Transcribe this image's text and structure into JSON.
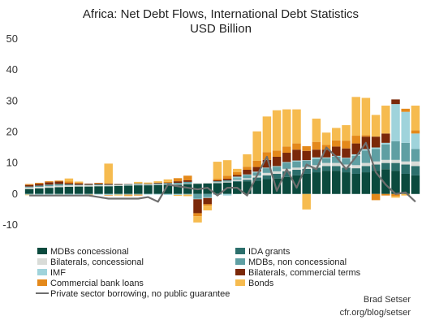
{
  "chart_data": {
    "type": "bar",
    "stacked": true,
    "title": "Africa: Net Debt Flows, International Debt Statistics",
    "subtitle": "USD Billion",
    "xlabel": "",
    "ylabel": "",
    "ylim": [
      -15,
      50
    ],
    "yticks": [
      -10,
      0,
      10,
      20,
      30,
      40,
      50
    ],
    "grid": false,
    "legend_position": "bottom",
    "series": [
      {
        "name": "MDBs concessional",
        "color": "#0b4a3e",
        "values": [
          1.6,
          1.8,
          2.0,
          2.2,
          2.3,
          2.4,
          2.4,
          2.5,
          2.5,
          2.6,
          2.7,
          2.8,
          2.8,
          2.9,
          3.0,
          3.0,
          3.2,
          3.3,
          3.4,
          3.5,
          3.7,
          3.9,
          4.1,
          4.3,
          4.8,
          5.0,
          5.5,
          6.0,
          6.5,
          7.0,
          7.5,
          7.5,
          7.0,
          6.5,
          7.0,
          7.5,
          8.0,
          7.5,
          6.5,
          6.0
        ]
      },
      {
        "name": "IDA grants",
        "color": "#2c6f6c",
        "values": [
          0,
          0,
          0,
          0,
          0,
          0,
          0,
          0,
          0,
          0,
          0,
          0,
          0,
          0,
          0,
          0,
          0,
          0,
          0,
          0,
          0,
          0.3,
          0.5,
          1.0,
          1.2,
          1.5,
          1.8,
          1.8,
          1.6,
          1.5,
          1.5,
          1.5,
          1.5,
          1.8,
          2.0,
          2.0,
          2.0,
          2.5,
          3.0,
          3.0
        ]
      },
      {
        "name": "Bilaterals, concessional",
        "color": "#d9dcd8",
        "values": [
          0.5,
          0.5,
          0.5,
          0.5,
          0.5,
          0.4,
          0.4,
          0.3,
          0.3,
          0.2,
          0.2,
          0.2,
          0.2,
          0.2,
          0.2,
          0.2,
          0.2,
          0.2,
          0.2,
          0.3,
          0.3,
          0.4,
          0.5,
          0.6,
          0.8,
          0.8,
          0.8,
          0.7,
          0.6,
          0.8,
          1.0,
          1.0,
          1.0,
          1.0,
          1.0,
          1.0,
          1.0,
          1.0,
          1.0,
          1.5
        ]
      },
      {
        "name": "MDBs, non concessional",
        "color": "#5f9fa3",
        "values": [
          0.3,
          0.4,
          0.5,
          0.5,
          0.3,
          0.2,
          0.2,
          0.3,
          0.2,
          0.2,
          0.2,
          0.3,
          0.2,
          0.3,
          0.3,
          0.4,
          0.5,
          -1.5,
          -1.0,
          0.3,
          0.4,
          0.5,
          1.0,
          1.0,
          1.5,
          1.5,
          2.0,
          2.0,
          2.0,
          2.0,
          1.5,
          2.0,
          2.0,
          3.0,
          4.0,
          4.0,
          5.0,
          6.0,
          6.0,
          4.0
        ]
      },
      {
        "name": "IMF",
        "color": "#9fd3db",
        "values": [
          -0.2,
          -0.3,
          -0.3,
          -0.2,
          -0.3,
          -0.2,
          -0.2,
          -0.2,
          -0.3,
          -0.2,
          -0.2,
          -0.2,
          -0.2,
          -0.2,
          -0.3,
          -0.3,
          -0.2,
          -0.2,
          -0.3,
          -0.3,
          -0.5,
          0.5,
          0.2,
          0.3,
          0.2,
          0.2,
          0.2,
          0.3,
          0.2,
          0.5,
          0.3,
          0.3,
          0.2,
          0.5,
          0.5,
          0.5,
          0.5,
          12.0,
          10.0,
          5.0
        ]
      },
      {
        "name": "Bilaterals, commercial terms",
        "color": "#7b2809",
        "values": [
          0.5,
          0.6,
          0.8,
          0.8,
          0.4,
          0.4,
          0.3,
          0.3,
          0.3,
          0.2,
          0.1,
          0.1,
          0.1,
          0.2,
          0.1,
          0.5,
          0.5,
          -4.5,
          -2.0,
          0.3,
          0.5,
          0.5,
          1.5,
          1.5,
          2.5,
          3.0,
          3.0,
          3.5,
          3.0,
          2.5,
          2.5,
          3.0,
          3.0,
          3.5,
          4.0,
          3.5,
          3.0,
          1.5,
          0,
          0
        ]
      },
      {
        "name": "Commercial bank loans",
        "color": "#e4891b",
        "values": [
          0.3,
          0.3,
          0.3,
          0.3,
          0.5,
          0.3,
          -0.2,
          0.2,
          -0.2,
          0,
          -0.3,
          -0.3,
          0.1,
          0,
          0.3,
          1.0,
          1.5,
          -1.0,
          -0.5,
          0.5,
          1.0,
          1.0,
          1.0,
          2.0,
          2.5,
          2.0,
          2.0,
          2.0,
          1.5,
          2.5,
          1.5,
          2.0,
          2.5,
          2.5,
          0.5,
          -2.0,
          -0.5,
          -0.7,
          1.0,
          1.0
        ]
      },
      {
        "name": "Bonds",
        "color": "#f6bb4f",
        "values": [
          -0.2,
          -0.3,
          -0.3,
          -0.3,
          1.0,
          0.3,
          -0.3,
          0,
          6.5,
          -0.3,
          -0.2,
          0.5,
          0.3,
          0.5,
          0.8,
          -0.3,
          -0.5,
          -2.0,
          -1.5,
          5.5,
          5.0,
          1.0,
          4.0,
          9.5,
          11.5,
          13.0,
          12.0,
          11.0,
          -5.0,
          7.5,
          4.0,
          4.0,
          5.0,
          12.5,
          12.0,
          7.0,
          9.0,
          -0.5,
          -0.5,
          8.0
        ]
      }
    ],
    "line": {
      "name": "Private sector borrowing, no public guarantee",
      "color": "#6e6e6e",
      "values": [
        -0.5,
        -0.5,
        -0.5,
        -0.5,
        -0.5,
        -0.5,
        -0.5,
        -1.0,
        -1.5,
        -1.5,
        -1.5,
        -1.5,
        -1.0,
        -2.5,
        3.0,
        2.5,
        2.0,
        1.5,
        2.0,
        -0.5,
        2.0,
        2.0,
        -0.5,
        6.0,
        12.0,
        1.0,
        8.0,
        2.0,
        9.5,
        8.0,
        15.0,
        12.0,
        8.0,
        12.0,
        16.5,
        7.0,
        3.0,
        0,
        0.5,
        -2.5
      ]
    }
  },
  "credit": {
    "author": "Brad Setser",
    "site": "cfr.org/blog/setser"
  }
}
